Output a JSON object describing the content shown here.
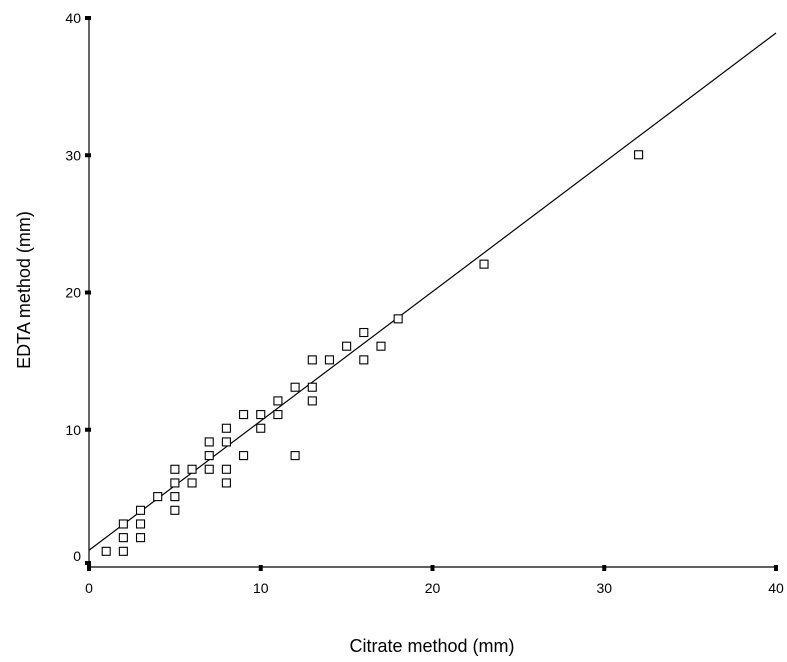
{
  "chart_data": {
    "type": "scatter",
    "xlabel": "Citrate method (mm)",
    "ylabel": "EDTA method (mm)",
    "xlim": [
      0,
      40
    ],
    "ylim": [
      0,
      40
    ],
    "x_ticks": [
      0,
      10,
      20,
      30,
      40
    ],
    "y_ticks": [
      0,
      10,
      20,
      30,
      40
    ],
    "x_tick_labels": [
      "0",
      "10",
      "20",
      "30",
      "40"
    ],
    "y_tick_labels": [
      "0",
      "10",
      "20",
      "30",
      "40"
    ],
    "grid": false,
    "series": [
      {
        "points": [
          [
            1,
            1
          ],
          [
            2,
            1
          ],
          [
            2,
            2
          ],
          [
            2,
            3
          ],
          [
            3,
            2
          ],
          [
            3,
            3
          ],
          [
            3,
            4
          ],
          [
            4,
            5
          ],
          [
            5,
            4
          ],
          [
            5,
            5
          ],
          [
            5,
            6
          ],
          [
            5,
            7
          ],
          [
            6,
            6
          ],
          [
            6,
            7
          ],
          [
            7,
            7
          ],
          [
            7,
            8
          ],
          [
            7,
            9
          ],
          [
            8,
            6
          ],
          [
            8,
            7
          ],
          [
            8,
            9
          ],
          [
            8,
            10
          ],
          [
            9,
            8
          ],
          [
            9,
            11
          ],
          [
            10,
            10
          ],
          [
            10,
            11
          ],
          [
            11,
            11
          ],
          [
            11,
            12
          ],
          [
            12,
            8
          ],
          [
            12,
            13
          ],
          [
            13,
            12
          ],
          [
            13,
            13
          ],
          [
            13,
            15
          ],
          [
            14,
            15
          ],
          [
            15,
            16
          ],
          [
            16,
            15
          ],
          [
            16,
            17
          ],
          [
            17,
            16
          ],
          [
            18,
            18
          ],
          [
            23,
            22
          ],
          [
            32,
            30
          ]
        ]
      }
    ],
    "fit_line": {
      "x": [
        0,
        40
      ],
      "y": [
        0.5,
        39
      ]
    }
  }
}
